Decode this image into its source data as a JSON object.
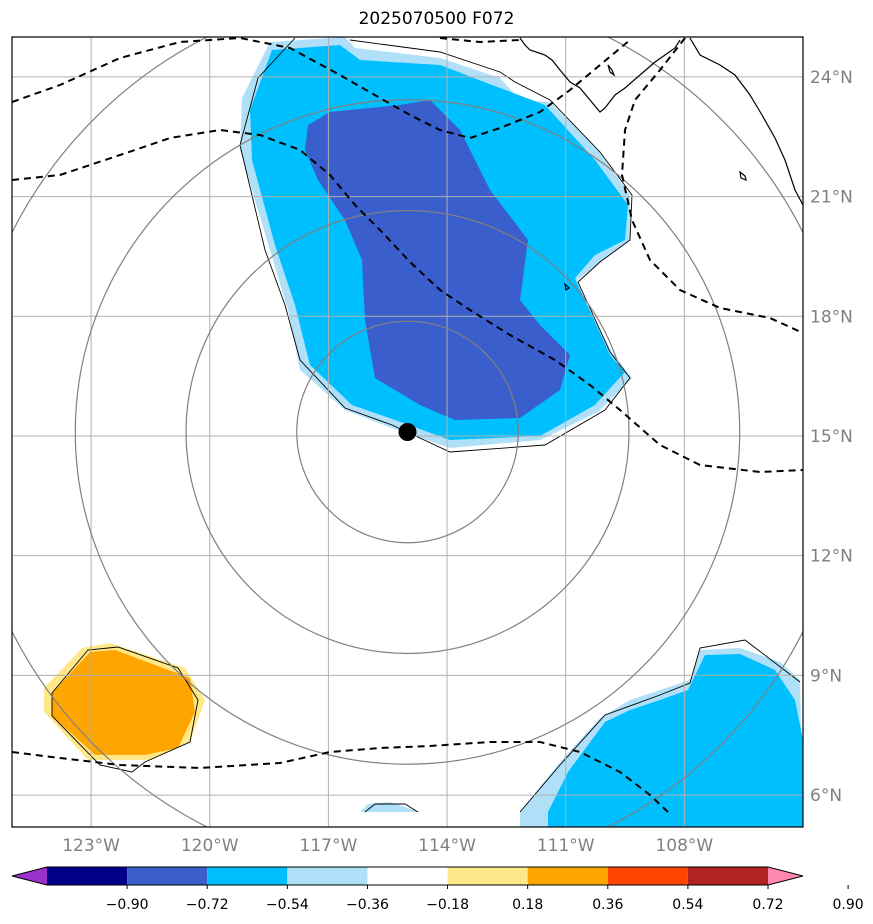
{
  "title": "2025070500 F072",
  "map": {
    "lon_range": [
      -125,
      -105
    ],
    "lat_range": [
      5.2,
      25.0
    ],
    "lon_ticks": [
      {
        "value": -123,
        "label": "123°W"
      },
      {
        "value": -120,
        "label": "120°W"
      },
      {
        "value": -117,
        "label": "117°W"
      },
      {
        "value": -114,
        "label": "114°W"
      },
      {
        "value": -111,
        "label": "111°W"
      },
      {
        "value": -108,
        "label": "108°W"
      }
    ],
    "lat_ticks": [
      {
        "value": 24,
        "label": "24°N"
      },
      {
        "value": 21,
        "label": "21°N"
      },
      {
        "value": 18,
        "label": "18°N"
      },
      {
        "value": 15,
        "label": "15°N"
      },
      {
        "value": 12,
        "label": "12°N"
      },
      {
        "value": 9,
        "label": "9°N"
      },
      {
        "value": 6,
        "label": "6°N"
      }
    ],
    "storm_center": {
      "lon": -115.0,
      "lat": 15.1
    },
    "range_ring_radii_deg": [
      2.8,
      5.6,
      8.4,
      11.2
    ],
    "colors": {
      "dark_purple": "#9932cc",
      "navy": "#00008b",
      "royal_blue": "#3a5ecc",
      "sky_blue": "#00bfff",
      "light_blue": "#b0e0f8",
      "white": "#ffffff",
      "light_yellow": "#ffe88a",
      "orange": "#ffa500",
      "orange_red": "#ff4500",
      "firebrick": "#b22222",
      "pink": "#ff88b0",
      "grid": "#b0b0b0",
      "ring": "#808080"
    }
  },
  "colorbar": {
    "labels": [
      "−0.90",
      "−0.72",
      "−0.54",
      "−0.36",
      "−0.18",
      "0.18",
      "0.36",
      "0.54",
      "0.72",
      "0.90"
    ],
    "colors": [
      "#9932cc",
      "#00008b",
      "#3a5ecc",
      "#00bfff",
      "#b0e0f8",
      "#ffffff",
      "#ffe88a",
      "#ffa500",
      "#ff4500",
      "#b22222",
      "#ff88b0"
    ]
  }
}
